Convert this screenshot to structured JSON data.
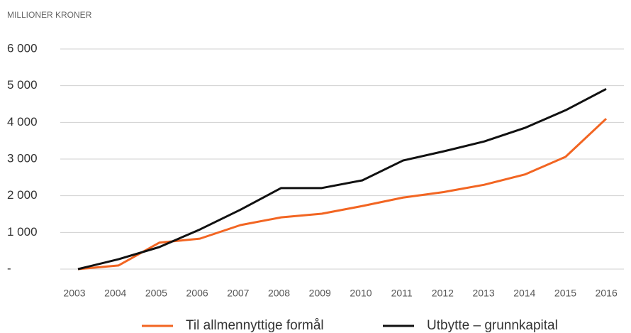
{
  "chart_data": {
    "type": "line",
    "title": "MILLIONER KRONER",
    "categories": [
      "2003",
      "2004",
      "2005",
      "2006",
      "2007",
      "2008",
      "2009",
      "2010",
      "2011",
      "2012",
      "2013",
      "2014",
      "2015",
      "2016"
    ],
    "series": [
      {
        "name": "Til allmennyttige formål",
        "color": "#f26522",
        "values": [
          0,
          100,
          720,
          830,
          1200,
          1410,
          1510,
          1720,
          1950,
          2100,
          2300,
          2580,
          3060,
          4100
        ]
      },
      {
        "name": "Utbytte – grunnkapital",
        "color": "#111111",
        "values": [
          0,
          270,
          600,
          1080,
          1620,
          2210,
          2210,
          2420,
          2960,
          3210,
          3480,
          3850,
          4330,
          4910
        ]
      }
    ],
    "ylim": [
      0,
      6000
    ],
    "yticks": [
      {
        "value": 0,
        "label": "-"
      },
      {
        "value": 1000,
        "label": "1 000"
      },
      {
        "value": 2000,
        "label": "2 000"
      },
      {
        "value": 3000,
        "label": "3 000"
      },
      {
        "value": 4000,
        "label": "4 000"
      },
      {
        "value": 5000,
        "label": "5 000"
      },
      {
        "value": 6000,
        "label": "6 000"
      }
    ],
    "grid": true,
    "legend": "bottom"
  }
}
